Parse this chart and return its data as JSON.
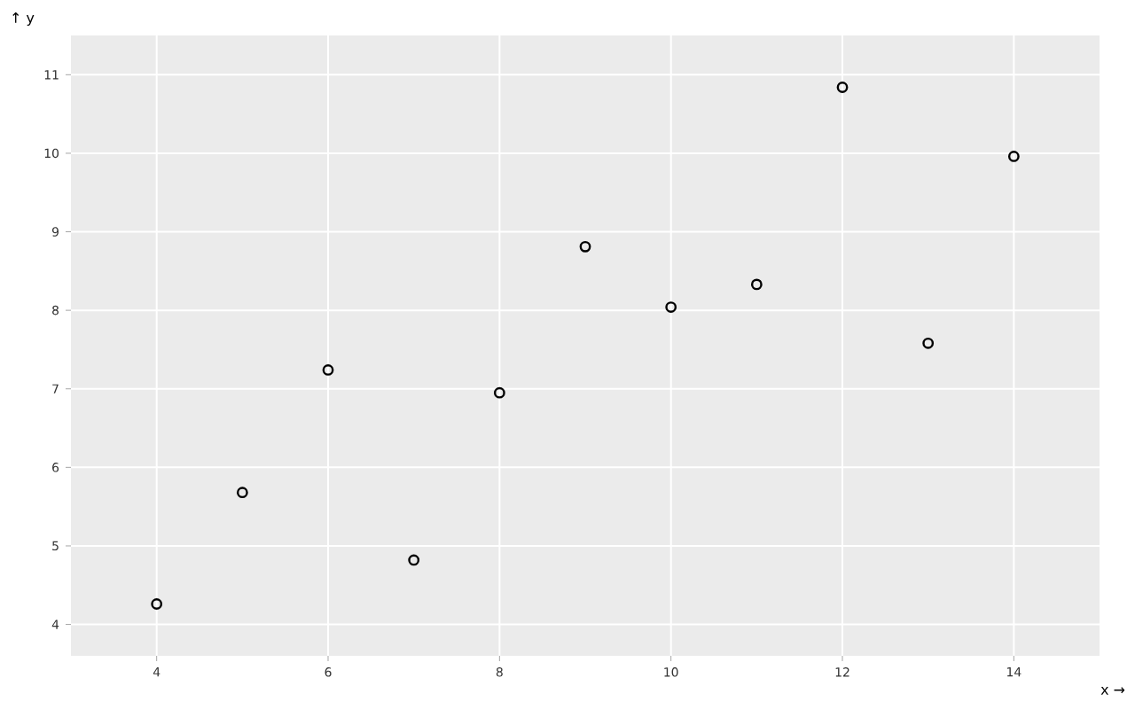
{
  "chart_data": {
    "type": "scatter",
    "xlabel": "x →",
    "ylabel": "↑ y",
    "x": [
      10,
      8,
      13,
      9,
      11,
      14,
      6,
      4,
      12,
      7,
      5
    ],
    "values": [
      8.04,
      6.95,
      7.58,
      8.81,
      8.33,
      9.96,
      7.24,
      4.26,
      10.84,
      4.82,
      5.68
    ],
    "color": "#000000",
    "marker": "circle",
    "xlim": [
      3,
      15
    ],
    "ylim": [
      3.6,
      11.5
    ],
    "xticks": [
      4,
      6,
      8,
      10,
      12,
      14
    ],
    "yticks": [
      4,
      5,
      6,
      7,
      8,
      9,
      10,
      11
    ],
    "grid": true
  }
}
